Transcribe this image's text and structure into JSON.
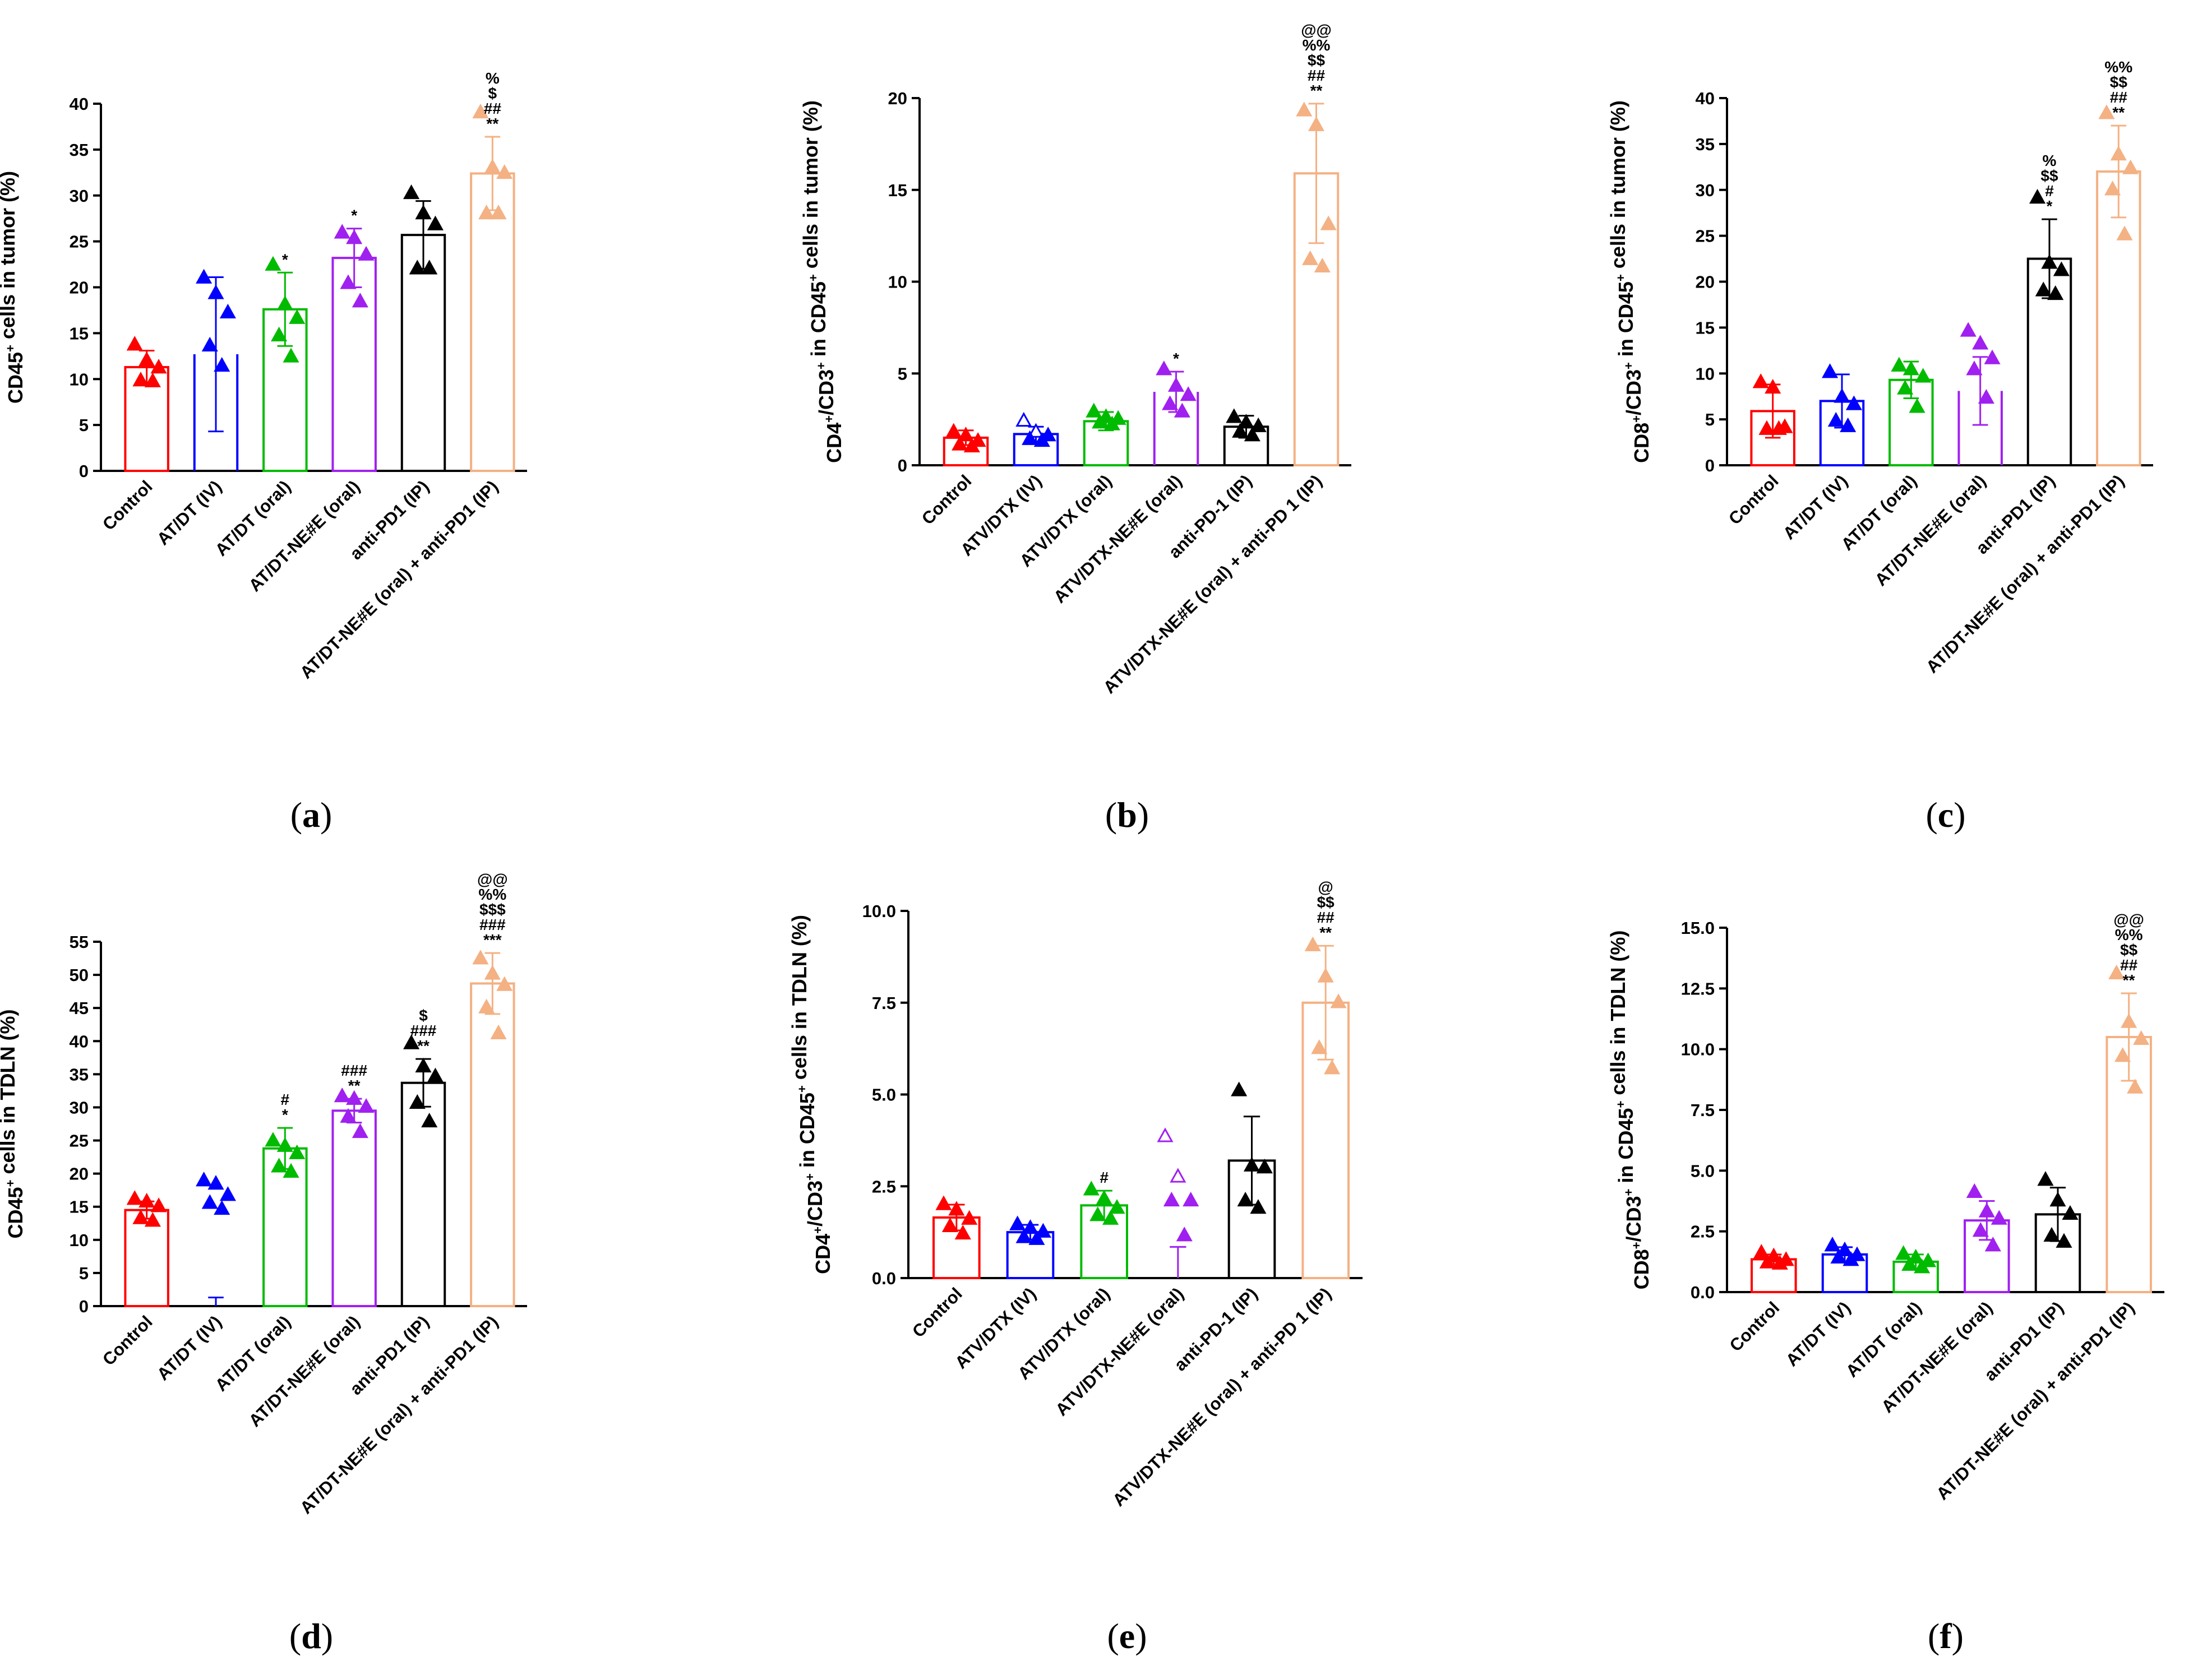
{
  "figure": {
    "palette": {
      "control": "#ff0000",
      "iv": "#0000ff",
      "oral": "#00bb00",
      "ne": "#a020f0",
      "pd1": "#000000",
      "combo": "#f4b183"
    }
  },
  "chart_data": [
    {
      "id": "a",
      "panel_label": "a",
      "type": "bar",
      "ylabel": {
        "base": "CD45",
        "sup": "+",
        "rest": " cells in tumor (%)"
      },
      "ylim": [
        0,
        40
      ],
      "yticks": [
        0,
        5,
        10,
        15,
        20,
        25,
        30,
        35,
        40
      ],
      "categories": [
        "Control",
        "AT/DT (IV)",
        "AT/DT (oral)",
        "AT/DT-NE#E (oral)",
        "anti-PD1 (IP)",
        "AT/DT-NE#E (oral) + anti-PD1 (IP)"
      ],
      "colors": [
        "control",
        "iv",
        "oral",
        "ne",
        "pd1",
        "combo"
      ],
      "open_bars": [
        false,
        true,
        false,
        false,
        false,
        false
      ],
      "values": [
        11.3,
        12.7,
        17.6,
        23.2,
        25.7,
        32.4
      ],
      "errors": [
        1.8,
        8.4,
        4.0,
        3.2,
        3.7,
        4.0
      ],
      "points": [
        [
          13.7,
          12.0,
          11.2,
          9.8,
          9.7
        ],
        [
          21.0,
          19.3,
          17.2,
          13.6,
          11.4
        ],
        [
          22.4,
          18.1,
          16.6,
          14.7,
          12.4
        ],
        [
          25.9,
          25.3,
          23.5,
          20.4,
          18.4
        ],
        [
          30.2,
          28.0,
          26.8,
          22.0,
          22.0
        ],
        [
          39.0,
          33.0,
          32.4,
          28.0,
          28.0
        ]
      ],
      "open_markers": [
        false,
        false,
        false,
        false,
        false,
        false
      ],
      "significance": [
        [],
        [],
        [
          "*"
        ],
        [
          "*"
        ],
        [],
        [
          "%",
          "$",
          "##",
          "**"
        ]
      ]
    },
    {
      "id": "b",
      "panel_label": "b",
      "type": "bar",
      "ylabel": {
        "base": "CD4",
        "sup": "+",
        "mid": "/CD3",
        "sup2": "+",
        "mid2": " in CD45",
        "sup3": "+",
        "rest": " cells in tumor (%)"
      },
      "ylim": [
        0,
        20
      ],
      "yticks": [
        0,
        5,
        10,
        15,
        20
      ],
      "categories": [
        "Control",
        "ATV/DTX (IV)",
        "ATV/DTX (oral)",
        "ATV/DTX-NE#E (oral)",
        "anti-PD-1 (IP)",
        "ATV/DTX-NE#E (oral) + anti-PD 1 (IP)"
      ],
      "colors": [
        "control",
        "iv",
        "oral",
        "ne",
        "pd1",
        "combo"
      ],
      "open_bars": [
        false,
        false,
        false,
        true,
        false,
        false
      ],
      "values": [
        1.5,
        1.7,
        2.4,
        4.0,
        2.1,
        15.9
      ],
      "errors": [
        0.4,
        0.4,
        0.5,
        1.1,
        0.6,
        3.8
      ],
      "points": [
        [
          1.8,
          1.6,
          1.3,
          1.1,
          1.0
        ],
        [
          2.4,
          1.8,
          1.6,
          1.4,
          1.3
        ],
        [
          2.9,
          2.6,
          2.5,
          2.3,
          2.2
        ],
        [
          5.2,
          4.3,
          3.8,
          3.3,
          2.9
        ],
        [
          2.6,
          2.3,
          2.1,
          1.8,
          1.6
        ],
        [
          19.3,
          18.5,
          13.1,
          11.2,
          10.8
        ]
      ],
      "open_markers": [
        false,
        true,
        false,
        false,
        false,
        false
      ],
      "significance": [
        [],
        [],
        [],
        [
          "*"
        ],
        [],
        [
          "@@",
          "%%",
          "$$",
          "##",
          "**"
        ]
      ]
    },
    {
      "id": "c",
      "panel_label": "c",
      "type": "bar",
      "ylabel": {
        "base": "CD8",
        "sup": "+",
        "mid": "/CD3",
        "sup2": "+",
        "mid2": " in CD45",
        "sup3": "+",
        "rest": " cells in tumor (%)"
      },
      "ylim": [
        0,
        40
      ],
      "yticks": [
        0,
        5,
        10,
        15,
        20,
        25,
        30,
        35,
        40
      ],
      "categories": [
        "Control",
        "AT/DT (IV)",
        "AT/DT (oral)",
        "AT/DT-NE#E (oral)",
        "anti-PD1 (IP)",
        "AT/DT-NE#E (oral) + anti-PD1 (IP)"
      ],
      "colors": [
        "control",
        "iv",
        "oral",
        "ne",
        "pd1",
        "combo"
      ],
      "open_bars": [
        false,
        false,
        false,
        true,
        false,
        false
      ],
      "values": [
        5.9,
        7.0,
        9.3,
        8.1,
        22.5,
        32.0
      ],
      "errors": [
        2.9,
        2.9,
        2.0,
        3.7,
        4.3,
        5.0
      ],
      "points": [
        [
          9.0,
          8.4,
          4.1,
          3.9,
          3.9
        ],
        [
          10.1,
          7.4,
          6.6,
          4.8,
          4.2
        ],
        [
          10.8,
          10.4,
          9.6,
          8.3,
          6.3
        ],
        [
          14.6,
          13.2,
          11.6,
          10.4,
          7.3
        ],
        [
          29.1,
          22.0,
          21.2,
          19.0,
          18.6
        ],
        [
          38.3,
          33.8,
          32.3,
          30.0,
          25.1
        ]
      ],
      "open_markers": [
        false,
        false,
        false,
        false,
        false,
        false
      ],
      "significance": [
        [],
        [],
        [],
        [],
        [
          "%",
          "$$",
          "#",
          "*"
        ],
        [
          "%%",
          "$$",
          "##",
          "**"
        ]
      ]
    },
    {
      "id": "d",
      "panel_label": "d",
      "type": "bar",
      "ylabel": {
        "base": "CD45",
        "sup": "+",
        "rest": " cells in TDLN (%)"
      },
      "ylim": [
        0,
        55
      ],
      "yticks": [
        0,
        5,
        10,
        15,
        20,
        25,
        30,
        35,
        40,
        45,
        50,
        55
      ],
      "categories": [
        "Control",
        "AT/DT (IV)",
        "AT/DT (oral)",
        "AT/DT-NE#E (oral)",
        "anti-PD1 (IP)",
        "AT/DT-NE#E (oral) + anti-PD1 (IP)"
      ],
      "colors": [
        "control",
        "iv",
        "oral",
        "ne",
        "pd1",
        "combo"
      ],
      "open_bars": [
        false,
        true,
        false,
        false,
        false,
        false
      ],
      "values": [
        14.5,
        0.0,
        23.8,
        29.5,
        33.7,
        48.7
      ],
      "errors": [
        1.3,
        1.3,
        3.1,
        1.8,
        3.6,
        4.6
      ],
      "points": [
        [
          16.1,
          15.7,
          15.0,
          13.2,
          12.8
        ],
        [
          18.9,
          18.4,
          16.7,
          15.5,
          14.6
        ],
        [
          24.9,
          24.1,
          23.0,
          21.0,
          20.2
        ],
        [
          31.6,
          31.2,
          30.0,
          28.5,
          26.2
        ],
        [
          39.6,
          36.1,
          34.6,
          30.6,
          27.8
        ],
        [
          52.4,
          50.1,
          48.4,
          45.0,
          41.1
        ]
      ],
      "open_markers": [
        false,
        false,
        false,
        false,
        false,
        false
      ],
      "significance": [
        [],
        [],
        [
          "#",
          "*"
        ],
        [
          "###",
          "**"
        ],
        [
          "$",
          "###",
          "**"
        ],
        [
          "@@",
          "%%",
          "$$$",
          "###",
          "***"
        ]
      ]
    },
    {
      "id": "e",
      "panel_label": "e",
      "type": "bar",
      "ylabel": {
        "base": "CD4",
        "sup": "+",
        "mid": "/CD3",
        "sup2": "+",
        "mid2": " in CD45",
        "sup3": "+",
        "rest": " cells in TDLN (%)"
      },
      "ylim": [
        0,
        10
      ],
      "yticks": [
        0,
        2.5,
        5,
        7.5,
        10
      ],
      "tick_labels": [
        "0.0",
        "2.5",
        "5.0",
        "7.5",
        "10.0"
      ],
      "categories": [
        "Control",
        "ATV/DTX (IV)",
        "ATV/DTX (oral)",
        "ATV/DTX-NE#E (oral)",
        "anti-PD-1 (IP)",
        "ATV/DTX-NE#E (oral) + anti-PD 1 (IP)"
      ],
      "colors": [
        "control",
        "iv",
        "oral",
        "ne",
        "pd1",
        "combo"
      ],
      "open_bars": [
        false,
        false,
        false,
        true,
        false,
        false
      ],
      "values": [
        1.65,
        1.25,
        1.98,
        0.0,
        3.2,
        7.5
      ],
      "errors": [
        0.35,
        0.2,
        0.4,
        0.85,
        1.2,
        1.55
      ],
      "points": [
        [
          2.0,
          1.85,
          1.6,
          1.4,
          1.2
        ],
        [
          1.45,
          1.35,
          1.25,
          1.1,
          1.05
        ],
        [
          2.4,
          2.15,
          1.9,
          1.7,
          1.6
        ],
        [
          3.85,
          2.75,
          2.1,
          2.1,
          1.15
        ],
        [
          5.1,
          3.05,
          3.0,
          2.1,
          1.9
        ],
        [
          9.05,
          8.2,
          7.5,
          6.25,
          5.7
        ]
      ],
      "open_markers": [
        false,
        false,
        false,
        true,
        false,
        false
      ],
      "significance": [
        [],
        [],
        [
          "#"
        ],
        [],
        [],
        [
          "@",
          "$$",
          "##",
          "**"
        ]
      ]
    },
    {
      "id": "f",
      "panel_label": "f",
      "type": "bar",
      "ylabel": {
        "base": "CD8",
        "sup": "+",
        "mid": "/CD3",
        "sup2": "+",
        "mid2": " in CD45",
        "sup3": "+",
        "rest": " cells in TDLN (%)"
      },
      "ylim": [
        0,
        15
      ],
      "yticks": [
        0,
        2.5,
        5,
        7.5,
        10,
        12.5,
        15
      ],
      "tick_labels": [
        "0.0",
        "2.5",
        "5.0",
        "7.5",
        "10.0",
        "12.5",
        "15.0"
      ],
      "categories": [
        "Control",
        "AT/DT (IV)",
        "AT/DT (oral)",
        "AT/DT-NE#E (oral)",
        "anti-PD1 (IP)",
        "AT/DT-NE#E (oral) + anti-PD1 (IP)"
      ],
      "colors": [
        "control",
        "iv",
        "oral",
        "ne",
        "pd1",
        "combo"
      ],
      "open_bars": [
        false,
        false,
        false,
        false,
        false,
        false
      ],
      "values": [
        1.35,
        1.55,
        1.25,
        2.95,
        3.2,
        10.5
      ],
      "errors": [
        0.2,
        0.3,
        0.3,
        0.8,
        1.1,
        1.8
      ],
      "points": [
        [
          1.6,
          1.45,
          1.3,
          1.2,
          1.15
        ],
        [
          1.9,
          1.7,
          1.5,
          1.4,
          1.3
        ],
        [
          1.55,
          1.4,
          1.25,
          1.1,
          1.0
        ],
        [
          4.1,
          3.3,
          3.0,
          2.5,
          1.9
        ],
        [
          4.6,
          3.75,
          3.2,
          2.3,
          2.05
        ],
        [
          13.1,
          11.1,
          10.4,
          9.7,
          8.4
        ]
      ],
      "open_markers": [
        false,
        false,
        false,
        false,
        false,
        false
      ],
      "significance": [
        [],
        [],
        [],
        [],
        [],
        [
          "@@",
          "%%",
          "$$",
          "##",
          "**"
        ]
      ]
    }
  ]
}
